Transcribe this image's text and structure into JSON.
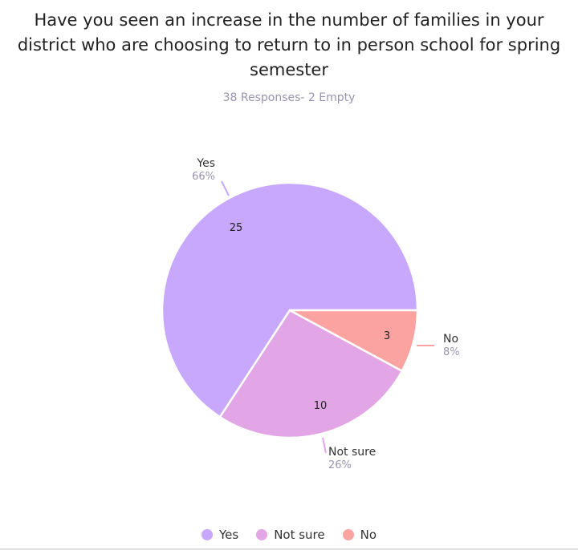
{
  "chart_data": {
    "type": "pie",
    "title": "Have you seen an increase in the number of families in your district who are choosing to return to in person school for spring semester",
    "subtitle": "38 Responses- 2 Empty",
    "categories": [
      "Yes",
      "Not sure",
      "No"
    ],
    "values": [
      25,
      10,
      3
    ],
    "percent_labels": [
      "66%",
      "26%",
      "8%"
    ],
    "colors": [
      "#c7a8fd",
      "#e2a5e6",
      "#fba3a1"
    ],
    "legend_position": "bottom"
  }
}
